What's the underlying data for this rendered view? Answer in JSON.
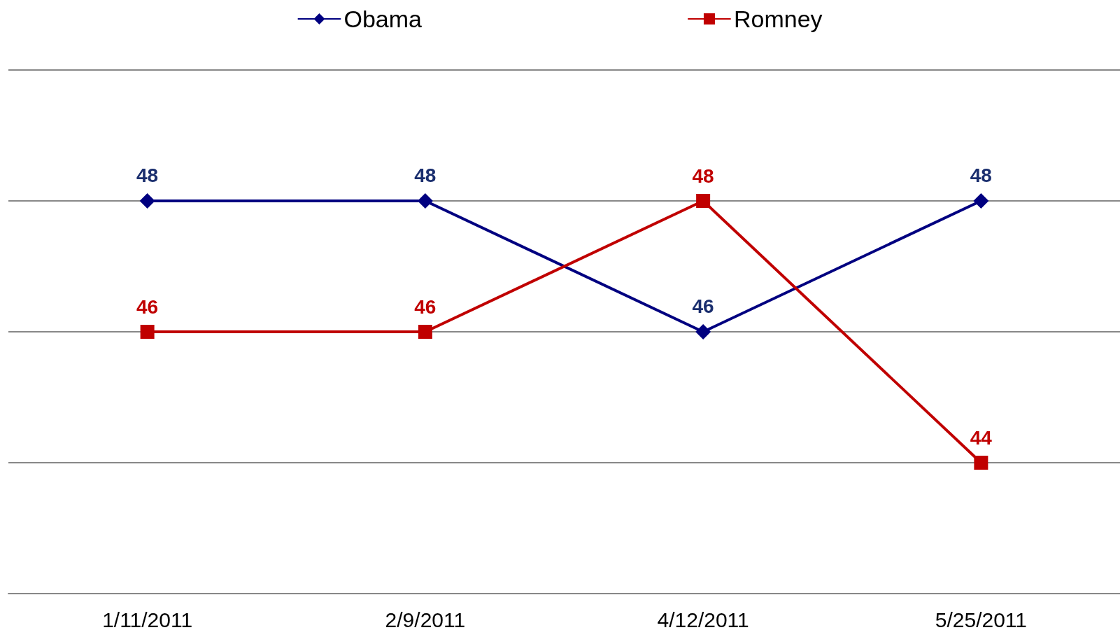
{
  "chart_data": {
    "type": "line",
    "categories": [
      "1/11/2011",
      "2/9/2011",
      "4/12/2011",
      "5/25/2011"
    ],
    "series": [
      {
        "name": "Obama",
        "color": "#000080",
        "marker": "diamond",
        "values": [
          48,
          48,
          46,
          48
        ]
      },
      {
        "name": "Romney",
        "color": "#c00000",
        "marker": "square",
        "values": [
          46,
          46,
          48,
          44
        ]
      }
    ],
    "ylim": [
      42,
      50
    ],
    "yticks": [
      {
        "value": 42,
        "label": null
      },
      {
        "value": 44,
        "label": null
      },
      {
        "value": 46,
        "label": null
      },
      {
        "value": 48,
        "label": null
      },
      {
        "value": 50,
        "label": null
      }
    ],
    "grid": "y",
    "legend": "top",
    "tick_labels": "x",
    "data_labels": true,
    "line_style": "solid"
  }
}
